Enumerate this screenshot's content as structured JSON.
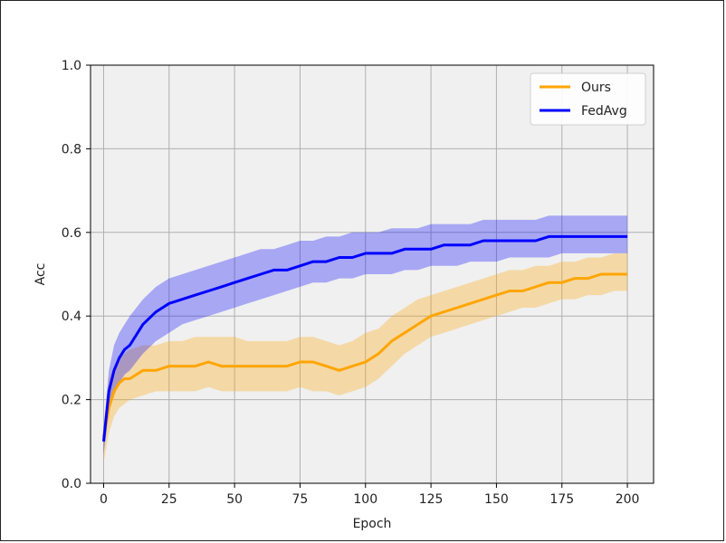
{
  "chart_data": {
    "type": "line",
    "title": "",
    "xlabel": "Epoch",
    "ylabel": "Acc",
    "xlim": [
      -5,
      210
    ],
    "ylim": [
      0.0,
      1.0
    ],
    "xticks": [
      0,
      25,
      50,
      75,
      100,
      125,
      150,
      175,
      200
    ],
    "yticks": [
      0.0,
      0.2,
      0.4,
      0.6,
      0.8,
      1.0
    ],
    "xtick_labels": [
      "0",
      "25",
      "50",
      "75",
      "100",
      "125",
      "150",
      "175",
      "200"
    ],
    "ytick_labels": [
      "0.0",
      "0.2",
      "0.4",
      "0.6",
      "0.8",
      "1.0"
    ],
    "grid": true,
    "legend_position": "top-right",
    "background": "#f0f0f0",
    "series": [
      {
        "name": "Ours",
        "color": "#ffa500",
        "x": [
          0,
          2,
          4,
          6,
          8,
          10,
          15,
          20,
          25,
          30,
          35,
          40,
          45,
          50,
          55,
          60,
          65,
          70,
          75,
          80,
          85,
          90,
          95,
          100,
          105,
          110,
          115,
          120,
          125,
          130,
          135,
          140,
          145,
          150,
          155,
          160,
          165,
          170,
          175,
          180,
          185,
          190,
          195,
          200
        ],
        "y": [
          0.11,
          0.18,
          0.22,
          0.24,
          0.25,
          0.25,
          0.27,
          0.27,
          0.28,
          0.28,
          0.28,
          0.29,
          0.28,
          0.28,
          0.28,
          0.28,
          0.28,
          0.28,
          0.29,
          0.29,
          0.28,
          0.27,
          0.28,
          0.29,
          0.31,
          0.34,
          0.36,
          0.38,
          0.4,
          0.41,
          0.42,
          0.43,
          0.44,
          0.45,
          0.46,
          0.46,
          0.47,
          0.48,
          0.48,
          0.49,
          0.49,
          0.5,
          0.5,
          0.5
        ],
        "lower": [
          0.05,
          0.12,
          0.16,
          0.18,
          0.19,
          0.2,
          0.21,
          0.22,
          0.22,
          0.22,
          0.22,
          0.23,
          0.22,
          0.22,
          0.22,
          0.22,
          0.22,
          0.22,
          0.23,
          0.22,
          0.22,
          0.21,
          0.22,
          0.23,
          0.25,
          0.28,
          0.31,
          0.33,
          0.35,
          0.36,
          0.37,
          0.38,
          0.39,
          0.4,
          0.41,
          0.42,
          0.42,
          0.43,
          0.44,
          0.44,
          0.45,
          0.45,
          0.46,
          0.46
        ],
        "upper": [
          0.14,
          0.25,
          0.28,
          0.3,
          0.31,
          0.32,
          0.33,
          0.33,
          0.34,
          0.34,
          0.35,
          0.35,
          0.35,
          0.35,
          0.34,
          0.34,
          0.34,
          0.34,
          0.35,
          0.35,
          0.34,
          0.33,
          0.34,
          0.36,
          0.37,
          0.4,
          0.42,
          0.44,
          0.45,
          0.46,
          0.47,
          0.48,
          0.49,
          0.5,
          0.51,
          0.51,
          0.52,
          0.52,
          0.53,
          0.53,
          0.54,
          0.54,
          0.55,
          0.55
        ]
      },
      {
        "name": "FedAvg",
        "color": "#0000ff",
        "x": [
          0,
          2,
          4,
          6,
          8,
          10,
          15,
          20,
          25,
          30,
          35,
          40,
          45,
          50,
          55,
          60,
          65,
          70,
          75,
          80,
          85,
          90,
          95,
          100,
          105,
          110,
          115,
          120,
          125,
          130,
          135,
          140,
          145,
          150,
          155,
          160,
          165,
          170,
          175,
          180,
          185,
          190,
          195,
          200
        ],
        "y": [
          0.1,
          0.22,
          0.27,
          0.3,
          0.32,
          0.33,
          0.38,
          0.41,
          0.43,
          0.44,
          0.45,
          0.46,
          0.47,
          0.48,
          0.49,
          0.5,
          0.51,
          0.51,
          0.52,
          0.53,
          0.53,
          0.54,
          0.54,
          0.55,
          0.55,
          0.55,
          0.56,
          0.56,
          0.56,
          0.57,
          0.57,
          0.57,
          0.58,
          0.58,
          0.58,
          0.58,
          0.58,
          0.59,
          0.59,
          0.59,
          0.59,
          0.59,
          0.59,
          0.59
        ],
        "lower": [
          0.07,
          0.17,
          0.21,
          0.24,
          0.26,
          0.27,
          0.31,
          0.34,
          0.36,
          0.38,
          0.39,
          0.4,
          0.41,
          0.42,
          0.43,
          0.44,
          0.45,
          0.46,
          0.47,
          0.48,
          0.48,
          0.49,
          0.49,
          0.5,
          0.5,
          0.5,
          0.51,
          0.51,
          0.52,
          0.52,
          0.52,
          0.53,
          0.53,
          0.53,
          0.54,
          0.54,
          0.54,
          0.54,
          0.55,
          0.55,
          0.55,
          0.55,
          0.55,
          0.55
        ],
        "upper": [
          0.13,
          0.27,
          0.33,
          0.36,
          0.38,
          0.4,
          0.44,
          0.47,
          0.49,
          0.5,
          0.51,
          0.52,
          0.53,
          0.54,
          0.55,
          0.56,
          0.56,
          0.57,
          0.58,
          0.58,
          0.59,
          0.59,
          0.6,
          0.6,
          0.6,
          0.61,
          0.61,
          0.61,
          0.62,
          0.62,
          0.62,
          0.62,
          0.63,
          0.63,
          0.63,
          0.63,
          0.63,
          0.64,
          0.64,
          0.64,
          0.64,
          0.64,
          0.64,
          0.64
        ]
      }
    ]
  }
}
